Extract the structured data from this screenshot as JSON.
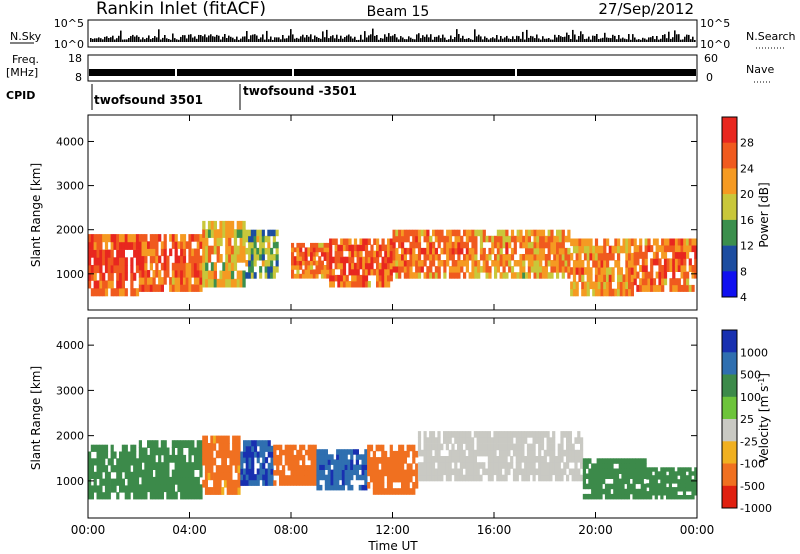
{
  "header": {
    "station": "Rankin Inlet (fitACF)",
    "beam": "Beam 15",
    "date": "27/Sep/2012"
  },
  "aux_panels": {
    "nsky": {
      "label": "N.Sky",
      "ticks": [
        "10^5",
        "10^0"
      ]
    },
    "nsearch": {
      "label": "N.Search",
      "ticks": [
        "10^5",
        "10^0"
      ]
    },
    "freq": {
      "label_top": "Freq.",
      "label_bottom": "[MHz]",
      "ticks": [
        "18",
        "8"
      ]
    },
    "nave": {
      "label": "Nave",
      "ticks": [
        "60",
        "0"
      ]
    },
    "cpid": {
      "label": "CPID",
      "segments": [
        "twofsound 3501",
        "twofsound -3501"
      ]
    }
  },
  "power_colorbar": {
    "label": "Power [dB]",
    "ticks": [
      "28",
      "24",
      "20",
      "16",
      "12",
      "8",
      "4"
    ],
    "colors": [
      "#e8271f",
      "#f05a1e",
      "#f59a22",
      "#c9c73a",
      "#3b8f4d",
      "#1c4da0",
      "#1010f0"
    ]
  },
  "velocity_colorbar": {
    "label": "Velocity [m s",
    "label_sup": "-1",
    "label_end": "]",
    "ticks": [
      "1000",
      "500",
      "100",
      "25",
      "-25",
      "-100",
      "-500",
      "-1000"
    ],
    "colors": [
      "#1830b0",
      "#2f6fb0",
      "#3c8a4a",
      "#6dc43b",
      "#c9c9c3",
      "#f0b020",
      "#f07020",
      "#e02010"
    ]
  },
  "chart_data": [
    {
      "type": "heatmap",
      "title": "Power",
      "ylabel": "Slant Range [km]",
      "xlabel": "Time UT",
      "x_ticks": [
        "00:00",
        "04:00",
        "08:00",
        "12:00",
        "16:00",
        "20:00",
        "00:00"
      ],
      "y_ticks": [
        "1000",
        "2000",
        "3000",
        "4000"
      ],
      "xlim": [
        0,
        24
      ],
      "ylim": [
        180,
        4600
      ],
      "colorscale": "power",
      "grid": false,
      "bands": [
        {
          "x": [
            0.0,
            2.0
          ],
          "range": [
            500,
            1900
          ],
          "value": 27
        },
        {
          "x": [
            2.0,
            4.5
          ],
          "range": [
            600,
            1900
          ],
          "value": 25
        },
        {
          "x": [
            4.5,
            6.2
          ],
          "range": [
            700,
            2200
          ],
          "value": 20
        },
        {
          "x": [
            6.2,
            7.5
          ],
          "range": [
            900,
            2000
          ],
          "value": 15
        },
        {
          "x": [
            8.0,
            9.5
          ],
          "range": [
            900,
            1700
          ],
          "value": 24
        },
        {
          "x": [
            9.5,
            12.0
          ],
          "range": [
            700,
            1800
          ],
          "value": 26
        },
        {
          "x": [
            12.0,
            15.0
          ],
          "range": [
            900,
            2000
          ],
          "value": 24
        },
        {
          "x": [
            15.0,
            19.0
          ],
          "range": [
            900,
            2000
          ],
          "value": 22
        },
        {
          "x": [
            19.0,
            21.5
          ],
          "range": [
            500,
            1800
          ],
          "value": 23
        },
        {
          "x": [
            21.5,
            24.0
          ],
          "range": [
            600,
            1800
          ],
          "value": 25
        }
      ]
    },
    {
      "type": "heatmap",
      "title": "Velocity",
      "ylabel": "Slant Range [km]",
      "xlabel": "Time UT",
      "x_ticks": [
        "00:00",
        "04:00",
        "08:00",
        "12:00",
        "16:00",
        "20:00",
        "00:00"
      ],
      "y_ticks": [
        "1000",
        "2000",
        "3000",
        "4000"
      ],
      "xlim": [
        0,
        24
      ],
      "ylim": [
        180,
        4600
      ],
      "colorscale": "velocity",
      "grid": false,
      "bands": [
        {
          "x": [
            0.0,
            2.0
          ],
          "range": [
            600,
            1800
          ],
          "value": 150
        },
        {
          "x": [
            2.0,
            4.5
          ],
          "range": [
            600,
            1900
          ],
          "value": 120
        },
        {
          "x": [
            4.5,
            6.0
          ],
          "range": [
            700,
            2000
          ],
          "value": -150
        },
        {
          "x": [
            6.0,
            7.3
          ],
          "range": [
            900,
            1900
          ],
          "value": 700
        },
        {
          "x": [
            7.3,
            9.0
          ],
          "range": [
            900,
            1800
          ],
          "value": -200
        },
        {
          "x": [
            9.0,
            11.0
          ],
          "range": [
            800,
            1700
          ],
          "value": 600
        },
        {
          "x": [
            11.0,
            13.0
          ],
          "range": [
            700,
            1800
          ],
          "value": -300
        },
        {
          "x": [
            13.0,
            19.5
          ],
          "range": [
            1000,
            2100
          ],
          "value": 0
        },
        {
          "x": [
            19.5,
            22.0
          ],
          "range": [
            600,
            1500
          ],
          "value": 120
        },
        {
          "x": [
            22.0,
            24.0
          ],
          "range": [
            600,
            1300
          ],
          "value": 150
        }
      ]
    }
  ]
}
